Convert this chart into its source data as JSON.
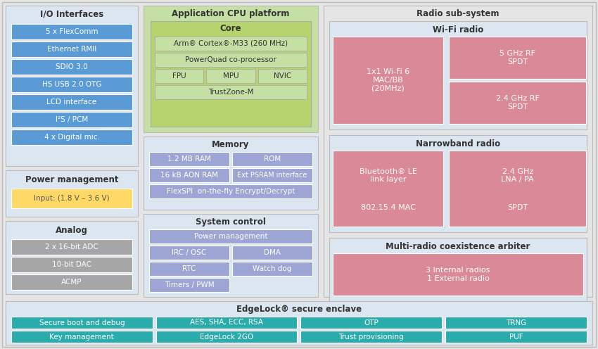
{
  "bg_color": "#e5e5e5",
  "light_blue_bg": "#dce6f1",
  "green_outer": "#c5e0a5",
  "green_inner": "#b5d46e",
  "purple_color": "#9da5d5",
  "pink_color": "#d98a96",
  "teal_color": "#2aacad",
  "yellow_color": "#ffd966",
  "gray_color": "#a6a6a6",
  "blue_color": "#5b9bd5",
  "white_color": "#ffffff",
  "sections": {
    "io": {
      "title": "I/O Interfaces",
      "items": [
        "5 x FlexComm",
        "Ethernet RMII",
        "SDIO 3.0",
        "HS USB 2.0 OTG",
        "LCD interface",
        "I²S / PCM",
        "4 x Digital mic."
      ]
    },
    "power": {
      "title": "Power management",
      "item": "Input: (1.8 V – 3.6 V)"
    },
    "analog": {
      "title": "Analog",
      "items": [
        "2 x 16-bit ADC",
        "10-bit DAC",
        "ACMP"
      ]
    },
    "cpu_title": "Application CPU platform",
    "core_title": "Core",
    "core_items": [
      "Arm® Cortex®-M33 (260 MHz)",
      "PowerQuad co-processor"
    ],
    "core_sub": [
      "FPU",
      "MPU",
      "NVIC"
    ],
    "core_bottom": "TrustZone-M",
    "mem_title": "Memory",
    "mem_row1": [
      "1.2 MB RAM",
      "ROM"
    ],
    "mem_row2": [
      "16 kB AON RAM",
      "Ext PSRAM interface"
    ],
    "mem_row3": "FlexSPI  on-the-fly Encrypt/Decrypt",
    "sc_title": "System control",
    "sc_items": [
      "Power management",
      "IRC / OSC",
      "DMA",
      "RTC",
      "Watch dog",
      "Timers / PWM"
    ],
    "radio_title": "Radio sub-system",
    "wifi_title": "Wi-Fi radio",
    "wifi_left": "1x1 Wi-Fi 6\nMAC/BB\n(20MHz)",
    "wifi_rt": "5 GHz RF\nSPDT",
    "wifi_rb": "2.4 GHz RF\nSPDT",
    "nb_title": "Narrowband radio",
    "nb_lt": "Bluetooth® LE\nlink layer",
    "nb_rt": "2.4 GHz\nLNA / PA",
    "nb_lb": "802.15.4 MAC",
    "nb_rb": "SPDT",
    "mr_title": "Multi-radio coexistence arbiter",
    "mr_text": "3 Internal radios\n1 External radio",
    "el_title": "EdgeLock® secure enclave",
    "el_row1": [
      "Secure boot and debug",
      "AES, SHA, ECC, RSA",
      "OTP",
      "TRNG"
    ],
    "el_row2": [
      "Key management",
      "EdgeLock 2GO",
      "Trust provisioning",
      "PUF"
    ]
  }
}
